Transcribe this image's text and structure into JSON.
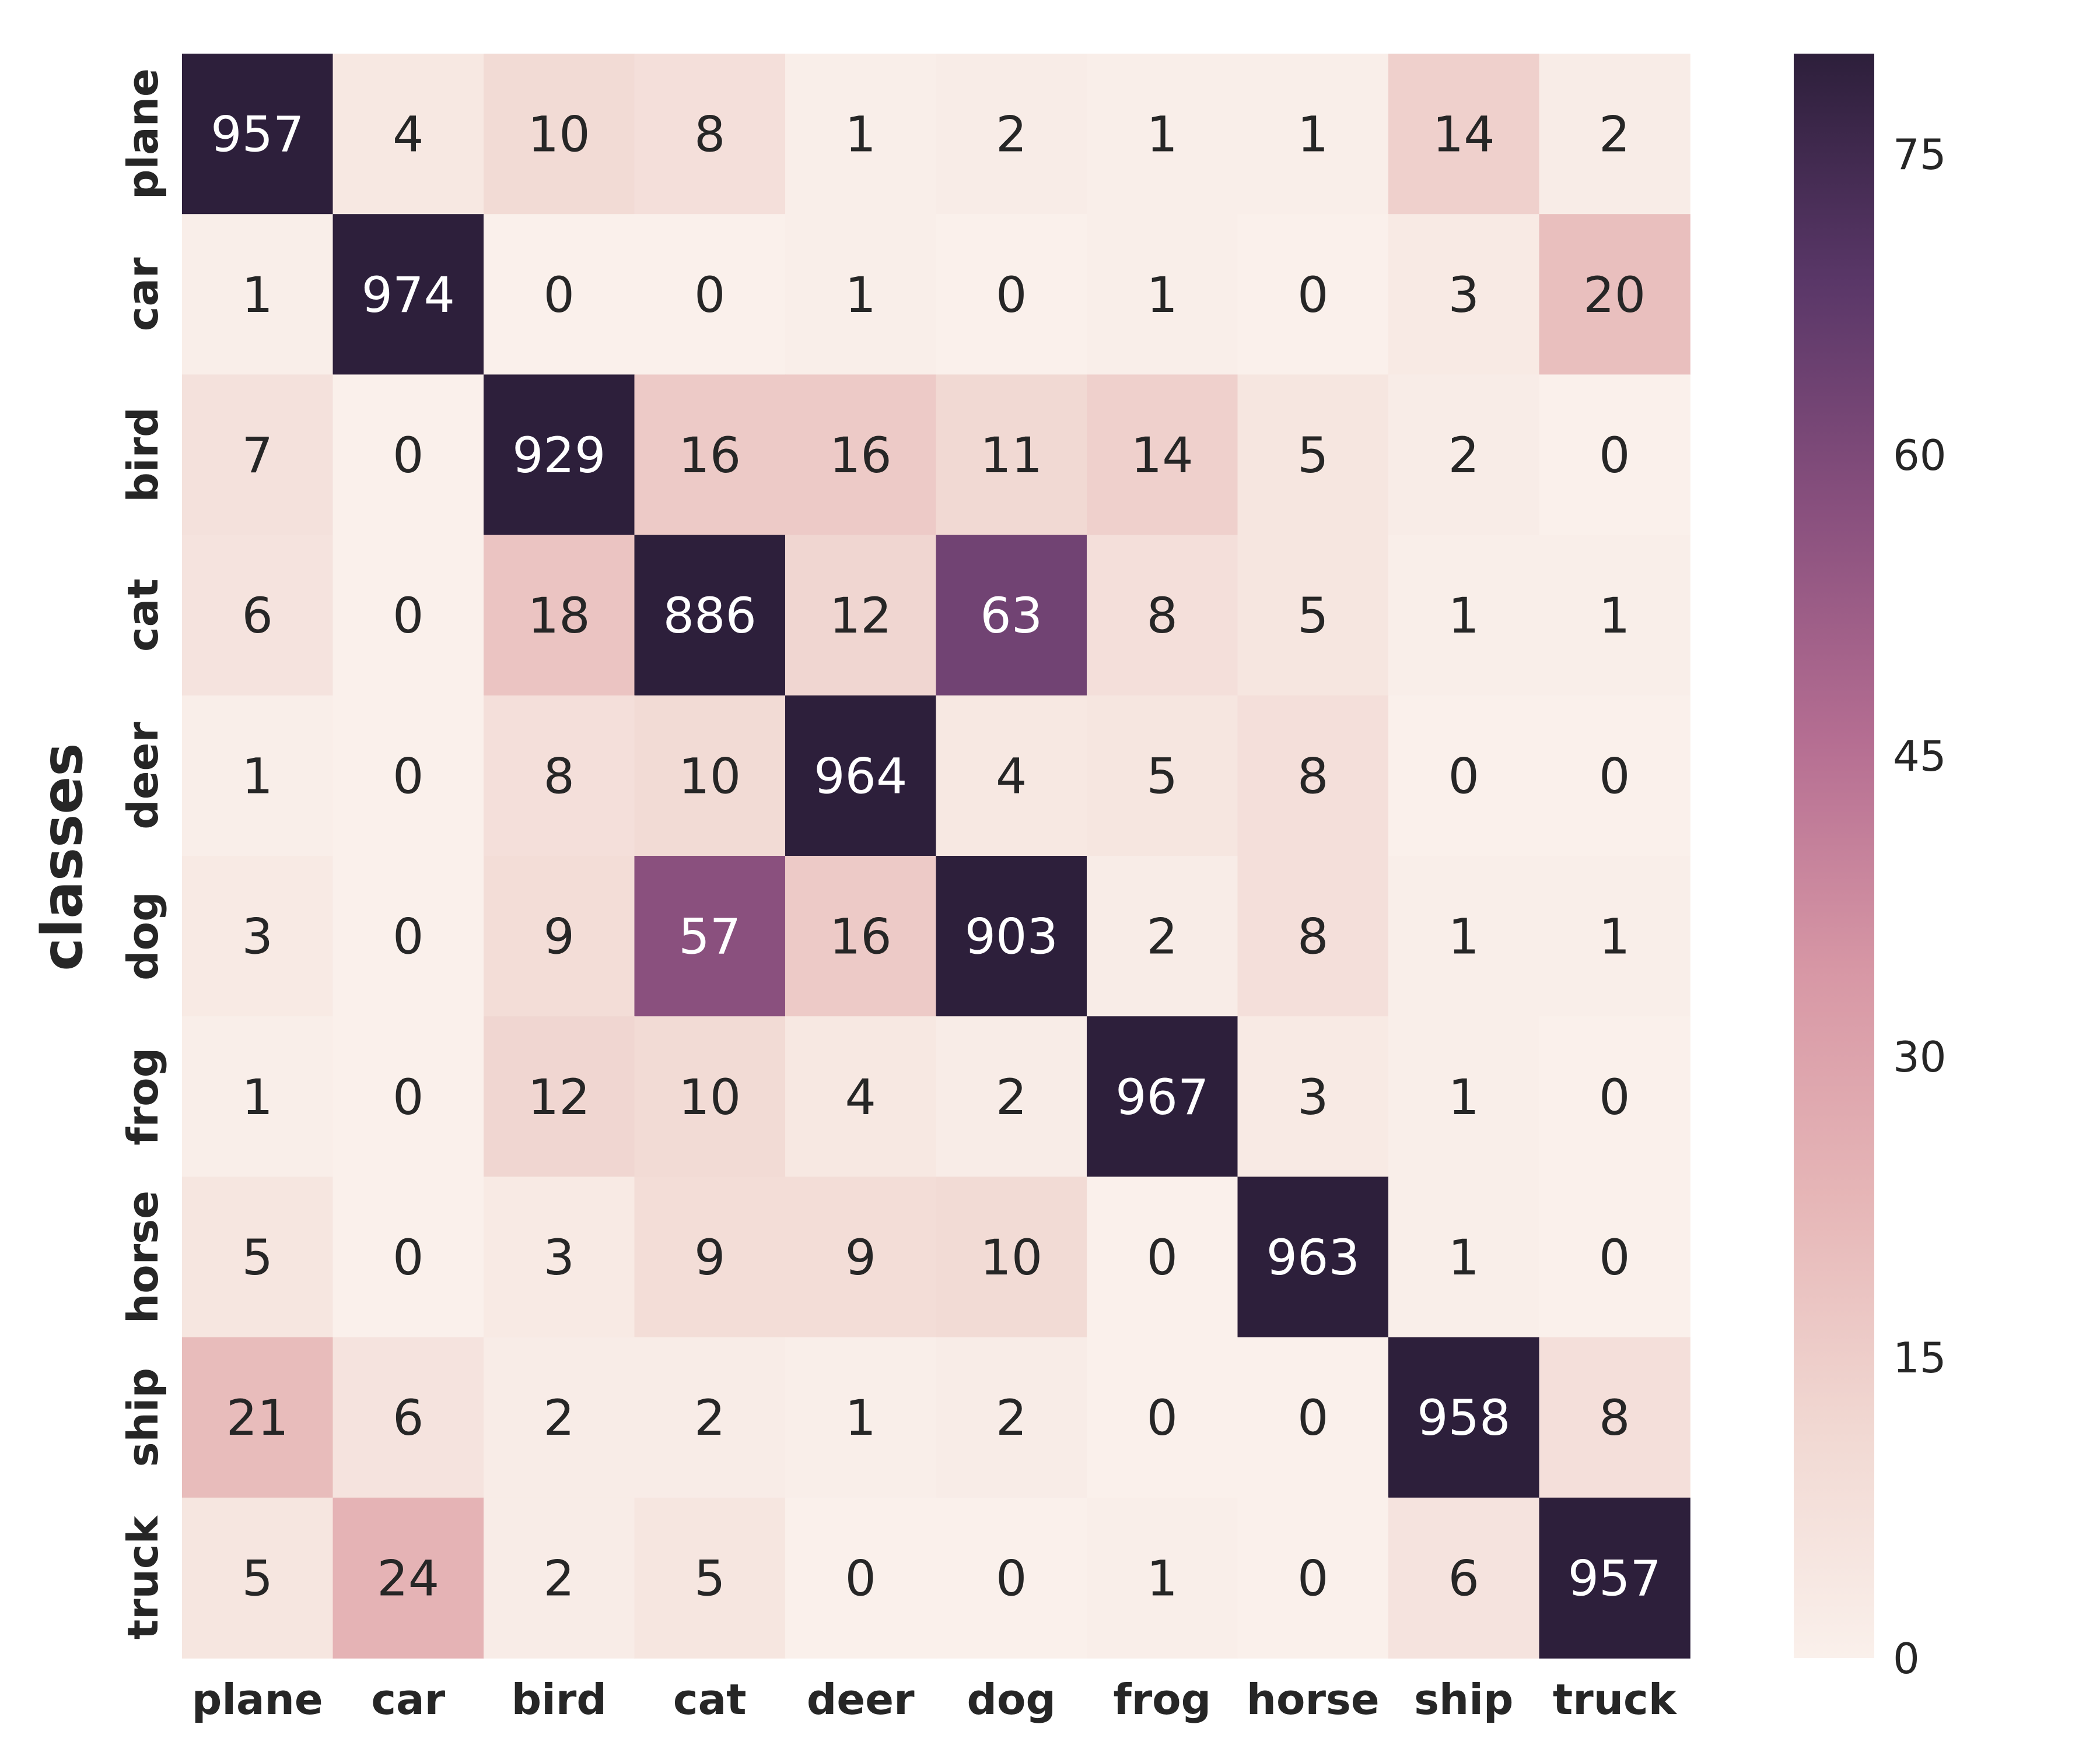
{
  "chart_data": {
    "type": "heatmap",
    "ylabel": "classes",
    "x_categories": [
      "plane",
      "car",
      "bird",
      "cat",
      "deer",
      "dog",
      "frog",
      "horse",
      "ship",
      "truck"
    ],
    "y_categories": [
      "plane",
      "car",
      "bird",
      "cat",
      "deer",
      "dog",
      "frog",
      "horse",
      "ship",
      "truck"
    ],
    "values": [
      [
        957,
        4,
        10,
        8,
        1,
        2,
        1,
        1,
        14,
        2
      ],
      [
        1,
        974,
        0,
        0,
        1,
        0,
        1,
        0,
        3,
        20
      ],
      [
        7,
        0,
        929,
        16,
        16,
        11,
        14,
        5,
        2,
        0
      ],
      [
        6,
        0,
        18,
        886,
        12,
        63,
        8,
        5,
        1,
        1
      ],
      [
        1,
        0,
        8,
        10,
        964,
        4,
        5,
        8,
        0,
        0
      ],
      [
        3,
        0,
        9,
        57,
        16,
        903,
        2,
        8,
        1,
        1
      ],
      [
        1,
        0,
        12,
        10,
        4,
        2,
        967,
        3,
        1,
        0
      ],
      [
        5,
        0,
        3,
        9,
        9,
        10,
        0,
        963,
        1,
        0
      ],
      [
        21,
        6,
        2,
        2,
        1,
        2,
        0,
        0,
        958,
        8
      ],
      [
        5,
        24,
        2,
        5,
        0,
        0,
        1,
        0,
        6,
        957
      ]
    ],
    "colorbar": {
      "ticks": [
        "0",
        "15",
        "30",
        "45",
        "60",
        "75"
      ],
      "vmin": 0,
      "vmax": 80
    },
    "colormap": [
      "#faf0eb",
      "#f1d8d2",
      "#e6b6b7",
      "#d797a5",
      "#b56e92",
      "#89507e",
      "#5a3768",
      "#2d1f3b"
    ]
  }
}
